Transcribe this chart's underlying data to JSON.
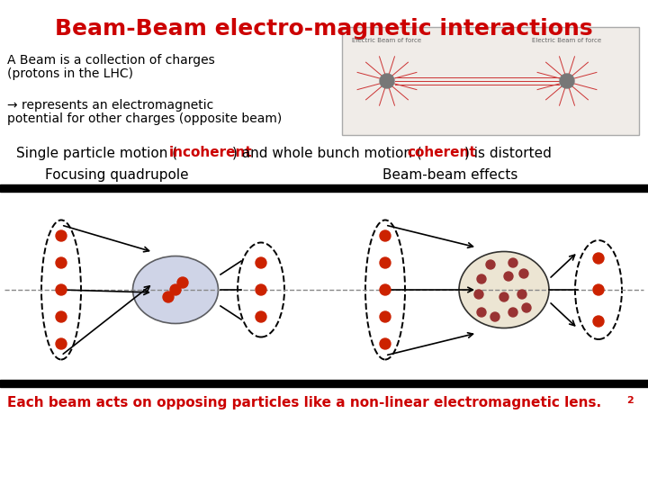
{
  "title": "Beam-Beam electro-magnetic interactions",
  "title_color": "#cc0000",
  "title_fontsize": 18,
  "bg_color": "#ffffff",
  "text1_line1": "A Beam is a collection of charges",
  "text1_line2": "(protons in the LHC)",
  "text2_line1": "→ represents an electromagnetic",
  "text2_line2": "potential for other charges (opposite beam)",
  "label_quad": "Focusing quadrupole",
  "label_bb": "Beam-beam effects",
  "footer": "Each beam acts on opposing particles like a non-linear electromagnetic lens.",
  "footer_2": "2",
  "footer_color": "#cc0000",
  "black_color": "#000000",
  "red_color": "#cc0000",
  "dot_red": "#cc2200",
  "dot_dark": "#993333",
  "blue_fill": "#b0b8d8",
  "cream_fill": "#e8dfc8",
  "gray_line": "#888888"
}
